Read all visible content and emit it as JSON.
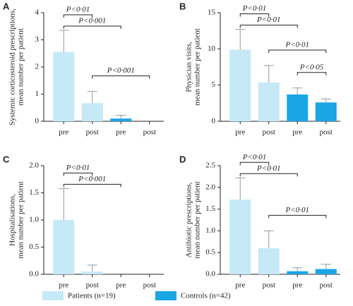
{
  "legend": [
    {
      "name": "Patients (n=19)",
      "color": "#c6e9f8"
    },
    {
      "name": "Controls (n=42)",
      "color": "#1aa6e4"
    }
  ],
  "chart_data": [
    {
      "type": "bar",
      "label": "A",
      "ylabel": [
        "Systemic corticosteroid prescriptions,",
        "mean number per patient"
      ],
      "categories": [
        "pre",
        "post",
        "pre",
        "post"
      ],
      "values": [
        2.55,
        0.67,
        0.1,
        0
      ],
      "errors": [
        0.8,
        0.43,
        0.12,
        0
      ],
      "colors": [
        "#c6e9f8",
        "#c6e9f8",
        "#1aa6e4",
        "#1aa6e4"
      ],
      "ylim": [
        0,
        4
      ],
      "yticks": [
        0,
        1,
        2,
        3,
        4
      ],
      "annotations": [
        {
          "text": "P<0·01",
          "from": 0,
          "to": 1
        },
        {
          "text": "P<0·001",
          "from": 0,
          "to": 2
        },
        {
          "text": "P<0·001",
          "from": 1,
          "to": 3
        }
      ]
    },
    {
      "type": "bar",
      "label": "B",
      "ylabel": [
        "Physician visits,",
        "mean number per patient"
      ],
      "categories": [
        "pre",
        "post",
        "pre",
        "post"
      ],
      "values": [
        9.9,
        5.35,
        3.7,
        2.6
      ],
      "errors": [
        2.8,
        2.35,
        0.9,
        0.5
      ],
      "colors": [
        "#c6e9f8",
        "#c6e9f8",
        "#1aa6e4",
        "#1aa6e4"
      ],
      "ylim": [
        0,
        15
      ],
      "yticks": [
        0,
        5,
        10,
        15
      ],
      "annotations": [
        {
          "text": "P<0·01",
          "from": 0,
          "to": 1
        },
        {
          "text": "P<0·01",
          "from": 0,
          "to": 2
        },
        {
          "text": "P<0·01",
          "from": 1,
          "to": 3
        },
        {
          "text": "P<0·05",
          "from": 2,
          "to": 3
        }
      ]
    },
    {
      "type": "bar",
      "label": "C",
      "ylabel": [
        "Hospitalisations,",
        "mean number per patient"
      ],
      "categories": [
        "pre",
        "post",
        "pre",
        "post"
      ],
      "values": [
        1.0,
        0.05,
        0,
        0
      ],
      "errors": [
        0.58,
        0.12,
        0,
        0
      ],
      "colors": [
        "#c6e9f8",
        "#c6e9f8",
        "#1aa6e4",
        "#1aa6e4"
      ],
      "ylim": [
        0,
        2
      ],
      "yticks": [
        {
          "value": 0,
          "label": "0.0"
        },
        {
          "value": 0.5,
          "label": "0.5"
        },
        {
          "value": 1,
          "label": "1.0"
        },
        {
          "value": 1.5,
          "label": "1.5"
        },
        {
          "value": 2,
          "label": "2.0"
        }
      ],
      "annotations": [
        {
          "text": "P<0·01",
          "from": 0,
          "to": 1
        },
        {
          "text": "P<0·001",
          "from": 0,
          "to": 2
        }
      ]
    },
    {
      "type": "bar",
      "label": "D",
      "ylabel": [
        "Antibiotic prescriptions,",
        "mean number per patient"
      ],
      "categories": [
        "pre",
        "post",
        "pre",
        "post"
      ],
      "values": [
        1.72,
        0.6,
        0.07,
        0.12
      ],
      "errors": [
        0.5,
        0.4,
        0.08,
        0.11
      ],
      "colors": [
        "#c6e9f8",
        "#c6e9f8",
        "#1aa6e4",
        "#1aa6e4"
      ],
      "ylim": [
        0,
        2.5
      ],
      "yticks": [
        {
          "value": 0,
          "label": "0.0"
        },
        {
          "value": 0.5,
          "label": "0.5"
        },
        {
          "value": 1,
          "label": "1.0"
        },
        {
          "value": 1.5,
          "label": "1.5"
        },
        {
          "value": 2,
          "label": "2.0"
        },
        {
          "value": 2.5,
          "label": "2.5"
        }
      ],
      "annotations": [
        {
          "text": "P<0·01",
          "from": 0,
          "to": 1
        },
        {
          "text": "P<0·01",
          "from": 0,
          "to": 2
        },
        {
          "text": "P<0·01",
          "from": 1,
          "to": 3
        }
      ]
    }
  ]
}
